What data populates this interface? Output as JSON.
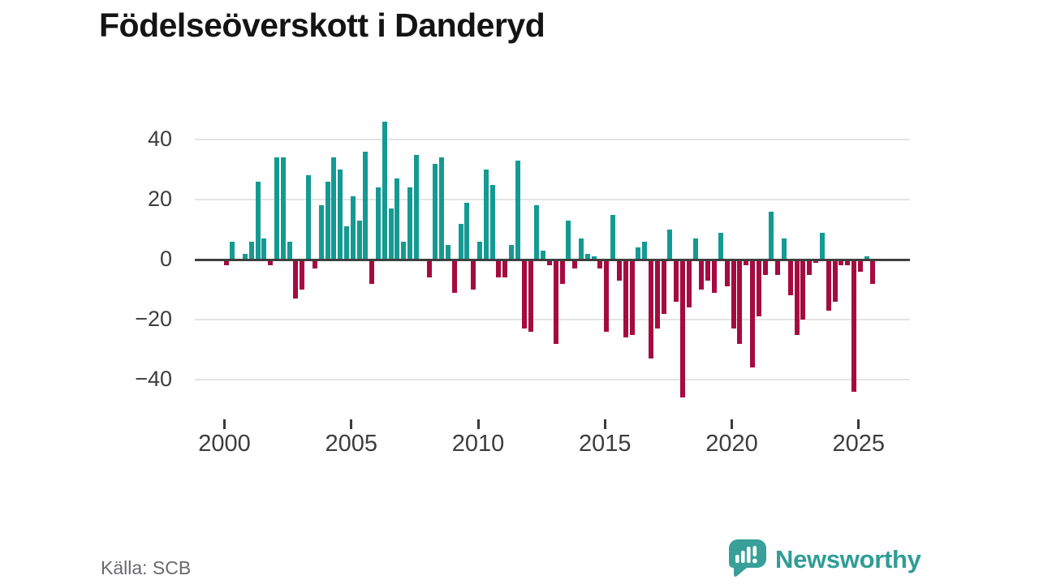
{
  "title": "Födelseöverskott i Danderyd",
  "source": "Källa: SCB",
  "logo": {
    "text": "Newsworthy",
    "icon": "bar-chart-speech-bubble",
    "bubble_color": "#38a099",
    "text_color": "#2f9d96"
  },
  "chart_data": {
    "type": "bar",
    "title": "Födelseöverskott i Danderyd",
    "xlabel": "",
    "ylabel": "",
    "frequency": "quarterly",
    "x_range": [
      "2000 Q1",
      "2025 Q3"
    ],
    "ylim": [
      -50,
      48
    ],
    "grid": "horizontal",
    "legend": "none",
    "y_ticks": [
      40,
      20,
      0,
      -20,
      -40
    ],
    "y_tick_labels": [
      "40",
      "20",
      "0",
      "−20",
      "−40"
    ],
    "x_tick_years": [
      2000,
      2005,
      2010,
      2015,
      2020,
      2025
    ],
    "x_tick_labels": [
      "2000",
      "2005",
      "2010",
      "2015",
      "2020",
      "2025"
    ],
    "positive_color": "#149a93",
    "negative_color": "#a50b3e",
    "series": [
      {
        "year": 2000,
        "values": [
          -2,
          6,
          0,
          2
        ]
      },
      {
        "year": 2001,
        "values": [
          6,
          26,
          7,
          -2
        ]
      },
      {
        "year": 2002,
        "values": [
          34,
          34,
          6,
          -13
        ]
      },
      {
        "year": 2003,
        "values": [
          -10,
          28,
          -3,
          18
        ]
      },
      {
        "year": 2004,
        "values": [
          26,
          34,
          30,
          11
        ]
      },
      {
        "year": 2005,
        "values": [
          21,
          13,
          36,
          -8
        ]
      },
      {
        "year": 2006,
        "values": [
          24,
          46,
          17,
          27
        ]
      },
      {
        "year": 2007,
        "values": [
          6,
          24,
          35,
          0
        ]
      },
      {
        "year": 2008,
        "values": [
          -6,
          32,
          34,
          5
        ]
      },
      {
        "year": 2009,
        "values": [
          -11,
          12,
          19,
          -10
        ]
      },
      {
        "year": 2010,
        "values": [
          6,
          30,
          25,
          -6
        ]
      },
      {
        "year": 2011,
        "values": [
          -6,
          5,
          33,
          -23
        ]
      },
      {
        "year": 2012,
        "values": [
          -24,
          18,
          3,
          -2
        ]
      },
      {
        "year": 2013,
        "values": [
          -28,
          -8,
          13,
          -3
        ]
      },
      {
        "year": 2014,
        "values": [
          7,
          2,
          1,
          -3
        ]
      },
      {
        "year": 2015,
        "values": [
          -24,
          15,
          -7,
          -26
        ]
      },
      {
        "year": 2016,
        "values": [
          -25,
          4,
          6,
          -33
        ]
      },
      {
        "year": 2017,
        "values": [
          -23,
          -18,
          10,
          -14
        ]
      },
      {
        "year": 2018,
        "values": [
          -46,
          -16,
          7,
          -10
        ]
      },
      {
        "year": 2019,
        "values": [
          -7,
          -11,
          9,
          -9
        ]
      },
      {
        "year": 2020,
        "values": [
          -23,
          -28,
          -2,
          -36
        ]
      },
      {
        "year": 2021,
        "values": [
          -19,
          -5,
          16,
          -5
        ]
      },
      {
        "year": 2022,
        "values": [
          7,
          -12,
          -25,
          -20
        ]
      },
      {
        "year": 2023,
        "values": [
          -5,
          -1,
          9,
          -17
        ]
      },
      {
        "year": 2024,
        "values": [
          -14,
          -2,
          -2,
          -44
        ]
      },
      {
        "year": 2025,
        "values": [
          -4,
          1,
          -8
        ]
      }
    ]
  }
}
